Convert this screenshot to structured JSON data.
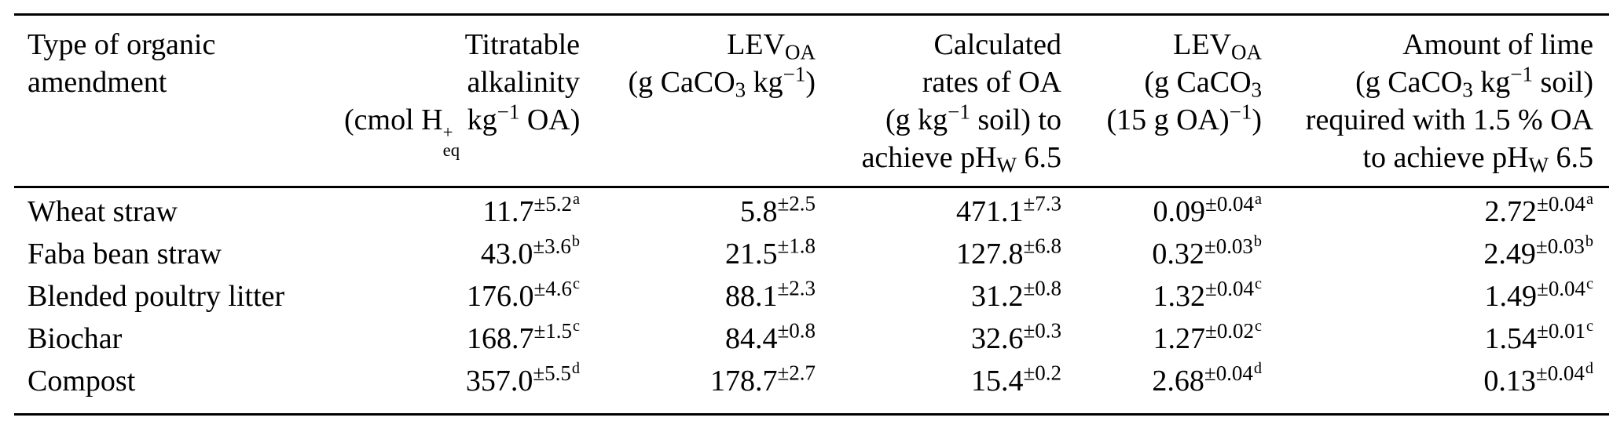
{
  "page": {
    "background": "#ffffff",
    "text_color": "#000000",
    "rule_color": "#000000"
  },
  "table": {
    "header": {
      "columns": [
        {
          "id": "amendment-type",
          "align": "left",
          "lines": [
            [
              {
                "t": "Type of organic"
              }
            ],
            [
              {
                "t": "amendment"
              }
            ]
          ]
        },
        {
          "id": "titratable-alkalinity",
          "align": "right",
          "lines": [
            [
              {
                "t": "Titratable"
              }
            ],
            [
              {
                "t": "alkalinity"
              }
            ],
            [
              {
                "t": "(cmol H"
              },
              {
                "v": "stack",
                "t": "+",
                "b": "eq"
              },
              {
                "t": " kg"
              },
              {
                "v": "sup",
                "t": "−1"
              },
              {
                "t": " OA)"
              }
            ]
          ]
        },
        {
          "id": "lev-oa-per-kg",
          "align": "right",
          "lines": [
            [
              {
                "t": "LEV"
              },
              {
                "v": "sub",
                "t": "OA"
              }
            ],
            [
              {
                "t": "(g CaCO"
              },
              {
                "v": "sub",
                "t": "3"
              },
              {
                "t": " kg"
              },
              {
                "v": "sup",
                "t": "−1"
              },
              {
                "t": ")"
              }
            ]
          ]
        },
        {
          "id": "calculated-rates",
          "align": "right",
          "lines": [
            [
              {
                "t": "Calculated"
              }
            ],
            [
              {
                "t": "rates of OA"
              }
            ],
            [
              {
                "t": "(g kg"
              },
              {
                "v": "sup",
                "t": "−1"
              },
              {
                "t": " soil) to"
              }
            ],
            [
              {
                "t": "achieve pH"
              },
              {
                "v": "sub",
                "t": "W"
              },
              {
                "t": " 6.5"
              }
            ]
          ]
        },
        {
          "id": "lev-oa-per-15g",
          "align": "right",
          "lines": [
            [
              {
                "t": "LEV"
              },
              {
                "v": "sub",
                "t": "OA"
              }
            ],
            [
              {
                "t": "(g CaCO"
              },
              {
                "v": "sub",
                "t": "3"
              }
            ],
            [
              {
                "t": "(15 g OA)"
              },
              {
                "v": "sup",
                "t": "−1"
              },
              {
                "t": ")"
              }
            ]
          ]
        },
        {
          "id": "lime-amount",
          "align": "right",
          "lines": [
            [
              {
                "t": "Amount of lime"
              }
            ],
            [
              {
                "t": "(g CaCO"
              },
              {
                "v": "sub",
                "t": "3"
              },
              {
                "t": " kg"
              },
              {
                "v": "sup",
                "t": "−1"
              },
              {
                "t": " soil)"
              }
            ],
            [
              {
                "t": "required with 1.5 % OA"
              }
            ],
            [
              {
                "t": "to achieve pH"
              },
              {
                "v": "sub",
                "t": "W"
              },
              {
                "t": " 6.5"
              }
            ]
          ]
        }
      ]
    },
    "rows": [
      {
        "amendment": "Wheat straw",
        "values": [
          {
            "v": "11.7",
            "pm": "±5.2",
            "mark": "a"
          },
          {
            "v": "5.8",
            "pm": "±2.5",
            "mark": ""
          },
          {
            "v": "471.1",
            "pm": "±7.3",
            "mark": ""
          },
          {
            "v": "0.09",
            "pm": "±0.04",
            "mark": "a"
          },
          {
            "v": "2.72",
            "pm": "±0.04",
            "mark": "a"
          }
        ]
      },
      {
        "amendment": "Faba bean straw",
        "values": [
          {
            "v": "43.0",
            "pm": "±3.6",
            "mark": "b"
          },
          {
            "v": "21.5",
            "pm": "±1.8",
            "mark": ""
          },
          {
            "v": "127.8",
            "pm": "±6.8",
            "mark": ""
          },
          {
            "v": "0.32",
            "pm": "±0.03",
            "mark": "b"
          },
          {
            "v": "2.49",
            "pm": "±0.03",
            "mark": "b"
          }
        ]
      },
      {
        "amendment": "Blended poultry litter",
        "values": [
          {
            "v": "176.0",
            "pm": "±4.6",
            "mark": "c"
          },
          {
            "v": "88.1",
            "pm": "±2.3",
            "mark": ""
          },
          {
            "v": "31.2",
            "pm": "±0.8",
            "mark": ""
          },
          {
            "v": "1.32",
            "pm": "±0.04",
            "mark": "c"
          },
          {
            "v": "1.49",
            "pm": "±0.04",
            "mark": "c"
          }
        ]
      },
      {
        "amendment": "Biochar",
        "values": [
          {
            "v": "168.7",
            "pm": "±1.5",
            "mark": "c"
          },
          {
            "v": "84.4",
            "pm": "±0.8",
            "mark": ""
          },
          {
            "v": "32.6",
            "pm": "±0.3",
            "mark": ""
          },
          {
            "v": "1.27",
            "pm": "±0.02",
            "mark": "c"
          },
          {
            "v": "1.54",
            "pm": "±0.01",
            "mark": "c"
          }
        ]
      },
      {
        "amendment": "Compost",
        "values": [
          {
            "v": "357.0",
            "pm": "±5.5",
            "mark": "d"
          },
          {
            "v": "178.7",
            "pm": "±2.7",
            "mark": ""
          },
          {
            "v": "15.4",
            "pm": "±0.2",
            "mark": ""
          },
          {
            "v": "2.68",
            "pm": "±0.04",
            "mark": "d"
          },
          {
            "v": "0.13",
            "pm": "±0.04",
            "mark": "d"
          }
        ]
      }
    ]
  }
}
